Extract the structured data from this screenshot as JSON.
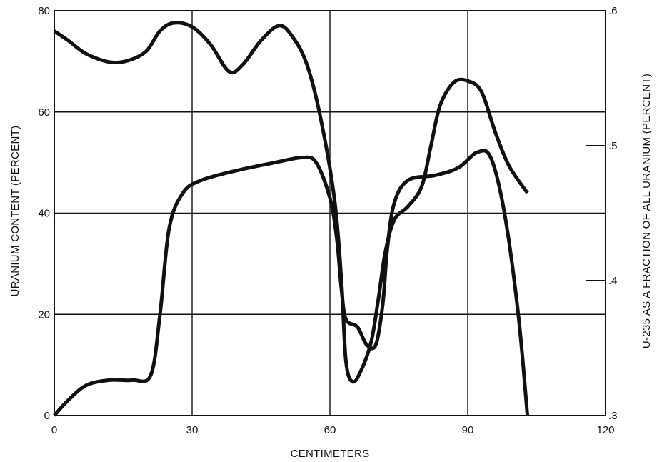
{
  "chart_data": {
    "type": "line",
    "title": "",
    "xlabel": "CENTIMETERS",
    "ylabel": "URANIUM CONTENT (PERCENT)",
    "y2label": "U-235 AS A FRACTION OF ALL URANIUM (PERCENT)",
    "xlim": [
      0,
      120
    ],
    "ylim": [
      0,
      80
    ],
    "y2lim": [
      0.3,
      0.6
    ],
    "grid": true,
    "legend": "none",
    "x_ticks": [
      {
        "value": 0,
        "label": "0"
      },
      {
        "value": 30,
        "label": "30"
      },
      {
        "value": 60,
        "label": "60"
      },
      {
        "value": 90,
        "label": "90"
      },
      {
        "value": 120,
        "label": "120"
      }
    ],
    "y_ticks": [
      {
        "value": 0,
        "label": "0"
      },
      {
        "value": 20,
        "label": "20"
      },
      {
        "value": 40,
        "label": "40"
      },
      {
        "value": 60,
        "label": "60"
      },
      {
        "value": 80,
        "label": "80"
      }
    ],
    "y2_ticks": [
      {
        "value": 0.3,
        "label": ".3"
      },
      {
        "value": 0.4,
        "label": ".4"
      },
      {
        "value": 0.5,
        "label": ".5"
      },
      {
        "value": 0.6,
        "label": ".6"
      }
    ],
    "series": [
      {
        "axis": "right",
        "values": [
          [
            0,
            0.585
          ],
          [
            3,
            0.578
          ],
          [
            7,
            0.568
          ],
          [
            12,
            0.562
          ],
          [
            16,
            0.563
          ],
          [
            20,
            0.57
          ],
          [
            23,
            0.585
          ],
          [
            26,
            0.591
          ],
          [
            30,
            0.588
          ],
          [
            34,
            0.575
          ],
          [
            38,
            0.555
          ],
          [
            41,
            0.56
          ],
          [
            45,
            0.578
          ],
          [
            49,
            0.589
          ],
          [
            52,
            0.58
          ],
          [
            55,
            0.56
          ],
          [
            58,
            0.52
          ],
          [
            61,
            0.46
          ],
          [
            62.5,
            0.4
          ],
          [
            63.5,
            0.34
          ],
          [
            65,
            0.325
          ],
          [
            67,
            0.335
          ],
          [
            69,
            0.355
          ],
          [
            70.5,
            0.385
          ],
          [
            72,
            0.42
          ],
          [
            74,
            0.445
          ],
          [
            77,
            0.455
          ],
          [
            80,
            0.47
          ],
          [
            82,
            0.5
          ],
          [
            84,
            0.53
          ],
          [
            87,
            0.547
          ],
          [
            90,
            0.548
          ],
          [
            93,
            0.54
          ],
          [
            96,
            0.51
          ],
          [
            99,
            0.485
          ],
          [
            103,
            0.465
          ]
        ]
      },
      {
        "axis": "left",
        "values": [
          [
            0,
            0
          ],
          [
            3,
            3
          ],
          [
            7,
            6
          ],
          [
            12,
            7
          ],
          [
            17,
            7
          ],
          [
            21,
            8
          ],
          [
            23,
            20
          ],
          [
            25,
            37
          ],
          [
            28,
            44
          ],
          [
            32,
            46.5
          ],
          [
            40,
            48.5
          ],
          [
            48,
            50
          ],
          [
            54,
            51
          ],
          [
            57,
            50
          ],
          [
            60,
            43
          ],
          [
            61.5,
            35
          ],
          [
            62.5,
            25
          ],
          [
            63.5,
            19
          ],
          [
            66,
            17.5
          ],
          [
            68,
            14
          ],
          [
            70,
            14
          ],
          [
            71.5,
            22
          ],
          [
            72.5,
            33
          ],
          [
            74,
            42
          ],
          [
            77,
            46.5
          ],
          [
            83,
            47.5
          ],
          [
            88,
            49
          ],
          [
            92,
            52
          ],
          [
            95,
            51
          ],
          [
            98,
            40
          ],
          [
            101,
            20
          ],
          [
            103,
            0
          ]
        ]
      }
    ]
  }
}
